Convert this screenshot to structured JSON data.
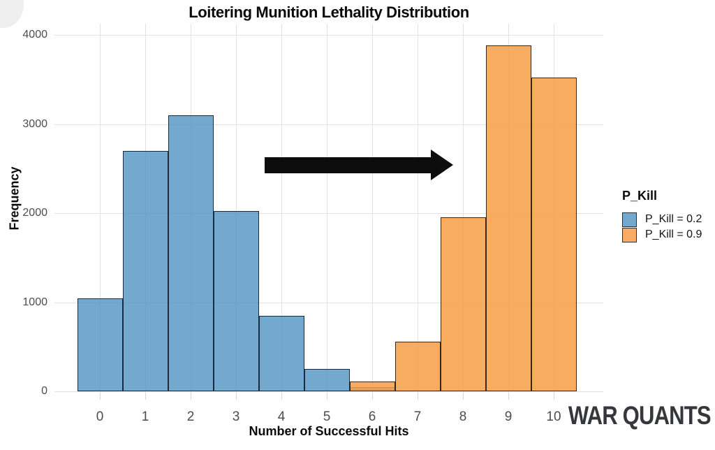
{
  "chart_data": {
    "type": "bar",
    "subtype": "overlaid-histogram",
    "title": "Loitering Munition Lethality Distribution",
    "xlabel": "Number of Successful Hits",
    "ylabel": "Frequency",
    "x_ticks": [
      0,
      1,
      2,
      3,
      4,
      5,
      6,
      7,
      8,
      9,
      10
    ],
    "y_ticks": [
      0,
      1000,
      2000,
      3000,
      4000
    ],
    "xlim": [
      -0.5,
      10.5
    ],
    "ylim": [
      0,
      4000
    ],
    "bin_width": 1,
    "grid": "major-only",
    "legend_position": "right",
    "legend_title": "P_Kill",
    "series": [
      {
        "name": "P_Kill = 0.2",
        "fill": "rgba(81,148,195,0.8)",
        "swatch_color": "#74A9CF",
        "border_color": "#1b2b3b",
        "values": [
          1045,
          2700,
          3100,
          2025,
          845,
          250,
          50,
          0,
          0,
          0,
          0
        ]
      },
      {
        "name": "P_Kill = 0.9",
        "fill": "rgba(247,158,67,0.85)",
        "swatch_color": "#F9AA63",
        "border_color": "#3a2413",
        "values": [
          0,
          0,
          0,
          0,
          0,
          0,
          110,
          560,
          1950,
          3880,
          3520
        ]
      }
    ],
    "annotation_arrow": {
      "direction": "right",
      "x_start": 3.63,
      "x_end": 7.79,
      "y": 2540,
      "color": "#0d0d0d"
    }
  },
  "watermark": "WAR QUANTS"
}
